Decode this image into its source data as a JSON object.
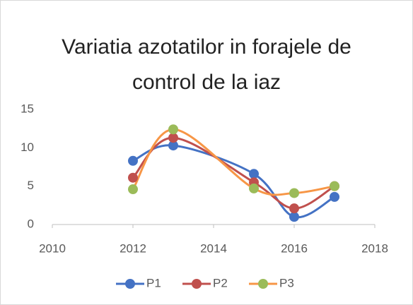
{
  "chart_data": {
    "type": "line",
    "title": "Variatia azotatilor in forajele de control de la iaz",
    "x": [
      2012,
      2013,
      2015,
      2016,
      2017
    ],
    "series": [
      {
        "name": "P1",
        "color": "#4472c4",
        "marker_color": "#4472c4",
        "values": [
          8.3,
          10.3,
          6.6,
          1.0,
          3.6
        ]
      },
      {
        "name": "P2",
        "color": "#c0504d",
        "marker_color": "#c0504d",
        "values": [
          6.1,
          11.3,
          5.5,
          2.1,
          5.0
        ]
      },
      {
        "name": "P3",
        "color": "#f79646",
        "marker_color": "#9bbb59",
        "values": [
          4.6,
          12.4,
          4.7,
          4.1,
          5.0
        ]
      }
    ],
    "xlim": [
      2010,
      2018
    ],
    "xticks": [
      2010,
      2012,
      2014,
      2016,
      2018
    ],
    "ylim": [
      0,
      15
    ],
    "yticks": [
      0,
      5,
      10,
      15
    ],
    "smooth": true,
    "grid": false,
    "legend": "bottom"
  }
}
